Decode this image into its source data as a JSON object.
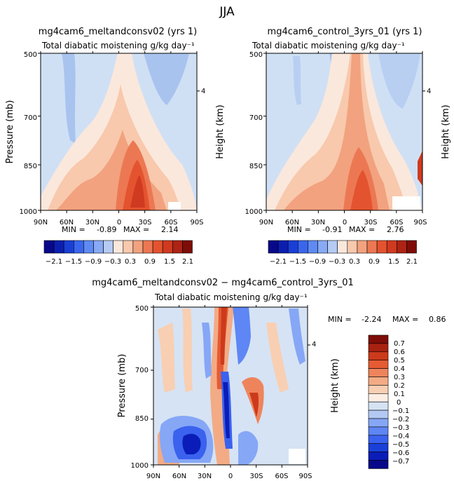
{
  "figure_title": "JJA",
  "colors": {
    "top_scale": [
      "#08088a",
      "#0c1eb0",
      "#1a3fd6",
      "#3a66ee",
      "#5f8af3",
      "#88aaf5",
      "#b5cbf4",
      "#fbe8dc",
      "#f8c9ad",
      "#f2a27f",
      "#ec7853",
      "#e4532f",
      "#cf3a20",
      "#ad2314",
      "#7e0d07"
    ],
    "diff_scale": [
      "#08088a",
      "#0b1db8",
      "#1a40da",
      "#3a62ee",
      "#5e86f4",
      "#86a7f6",
      "#b3c9f4",
      "#d6e3f4",
      "#fdeee4",
      "#f8cfb2",
      "#f3ab85",
      "#ee845c",
      "#e55b34",
      "#cc3a1b",
      "#a92211",
      "#7e0d07"
    ],
    "background_field": "#cfe0f5"
  },
  "chart_data": [
    {
      "type": "heatmap",
      "name": "left",
      "title": "mg4cam6_meltandconsv02 (yrs 1)",
      "subtitle": "Total diabatic moistening",
      "units": "g/kg day⁻¹",
      "xlabel": "",
      "ylabel": "Pressure (mb)",
      "right_axis_label": "Height (km)",
      "right_ticks": [
        "4"
      ],
      "x_ticks": [
        "90N",
        "60N",
        "30N",
        "0",
        "30S",
        "60S",
        "90S"
      ],
      "y_ticks": [
        "500",
        "700",
        "850",
        "1000"
      ],
      "min_label": "MIN =",
      "min": "-0.89",
      "max_label": "MAX =",
      "max": "2.14",
      "colorbar_labels": [
        "−2.1",
        "−1.5",
        "−0.9",
        "−0.3",
        "0.3",
        "0.9",
        "1.5",
        "2.1"
      ]
    },
    {
      "type": "heatmap",
      "name": "right",
      "title": "mg4cam6_control_3yrs_01 (yrs 1)",
      "subtitle": "Total diabatic moistening",
      "units": "g/kg day⁻¹",
      "xlabel": "",
      "ylabel": "Height (km)",
      "right_axis_label": "Height (km)",
      "right_ticks": [
        "4"
      ],
      "x_ticks": [
        "90N",
        "60N",
        "30N",
        "0",
        "30S",
        "60S",
        "90S"
      ],
      "y_ticks": [
        "500",
        "700",
        "850",
        "1000"
      ],
      "min_label": "MIN =",
      "min": "-0.91",
      "max_label": "MAX =",
      "max": "2.76",
      "colorbar_labels": [
        "−2.1",
        "−1.5",
        "−0.9",
        "−0.3",
        "0.3",
        "0.9",
        "1.5",
        "2.1"
      ]
    },
    {
      "type": "heatmap",
      "name": "diff",
      "title": "mg4cam6_meltandconsv02 − mg4cam6_control_3yrs_01",
      "subtitle": "Total diabatic moistening",
      "units": "g/kg day⁻¹",
      "xlabel": "",
      "ylabel": "Pressure (mb)",
      "right_axis_label": "Height (km)",
      "right_ticks": [
        "4"
      ],
      "x_ticks": [
        "90N",
        "60N",
        "30N",
        "0",
        "30S",
        "60S",
        "90S"
      ],
      "y_ticks": [
        "500",
        "700",
        "850",
        "1000"
      ],
      "min_label": "MIN =",
      "min": "-2.24",
      "max_label": "MAX =",
      "max": "0.86",
      "colorbar_labels": [
        "0.7",
        "0.6",
        "0.5",
        "0.4",
        "0.3",
        "0.2",
        "0.1",
        "0",
        "−0.1",
        "−0.2",
        "−0.3",
        "−0.4",
        "−0.5",
        "−0.6",
        "−0.7"
      ]
    }
  ]
}
